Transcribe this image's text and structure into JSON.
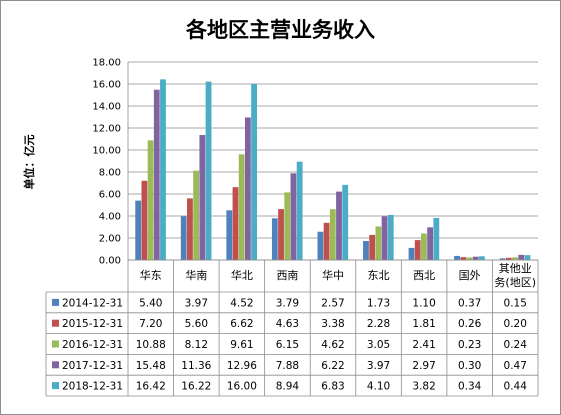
{
  "chart_data": {
    "type": "bar",
    "title": "各地区主营业务收入",
    "ylabel": "单位：亿元",
    "ylim": [
      0,
      18
    ],
    "yticks": [
      "0.00",
      "2.00",
      "4.00",
      "6.00",
      "8.00",
      "10.00",
      "12.00",
      "14.00",
      "16.00",
      "18.00"
    ],
    "grid": true,
    "legend": "data-table-bottom",
    "categories": [
      "华东",
      "华南",
      "华北",
      "西南",
      "华中",
      "东北",
      "西北",
      "国外",
      "其他业务(地区)"
    ],
    "category_lines": [
      [
        "华东"
      ],
      [
        "华南"
      ],
      [
        "华北"
      ],
      [
        "西南"
      ],
      [
        "华中"
      ],
      [
        "东北"
      ],
      [
        "西北"
      ],
      [
        "国外"
      ],
      [
        "其他业",
        "务(地区)"
      ]
    ],
    "series": [
      {
        "name": "2014-12-31",
        "color": "#4f81bd",
        "values": [
          5.4,
          3.97,
          4.52,
          3.79,
          2.57,
          1.73,
          1.1,
          0.37,
          0.15
        ],
        "labels": [
          "5.40",
          "3.97",
          "4.52",
          "3.79",
          "2.57",
          "1.73",
          "1.10",
          "0.37",
          "0.15"
        ]
      },
      {
        "name": "2015-12-31",
        "color": "#c0504d",
        "values": [
          7.2,
          5.6,
          6.62,
          4.63,
          3.38,
          2.28,
          1.81,
          0.26,
          0.2
        ],
        "labels": [
          "7.20",
          "5.60",
          "6.62",
          "4.63",
          "3.38",
          "2.28",
          "1.81",
          "0.26",
          "0.20"
        ]
      },
      {
        "name": "2016-12-31",
        "color": "#9bbb59",
        "values": [
          10.88,
          8.12,
          9.61,
          6.15,
          4.62,
          3.05,
          2.41,
          0.23,
          0.24
        ],
        "labels": [
          "10.88",
          "8.12",
          "9.61",
          "6.15",
          "4.62",
          "3.05",
          "2.41",
          "0.23",
          "0.24"
        ]
      },
      {
        "name": "2017-12-31",
        "color": "#8064a2",
        "values": [
          15.48,
          11.36,
          12.96,
          7.88,
          6.22,
          3.97,
          2.97,
          0.3,
          0.47
        ],
        "labels": [
          "15.48",
          "11.36",
          "12.96",
          "7.88",
          "6.22",
          "3.97",
          "2.97",
          "0.30",
          "0.47"
        ]
      },
      {
        "name": "2018-12-31",
        "color": "#4bacc6",
        "values": [
          16.42,
          16.22,
          16.0,
          8.94,
          6.83,
          4.1,
          3.82,
          0.34,
          0.44
        ],
        "labels": [
          "16.42",
          "16.22",
          "16.00",
          "8.94",
          "6.83",
          "4.10",
          "3.82",
          "0.34",
          "0.44"
        ]
      }
    ]
  }
}
